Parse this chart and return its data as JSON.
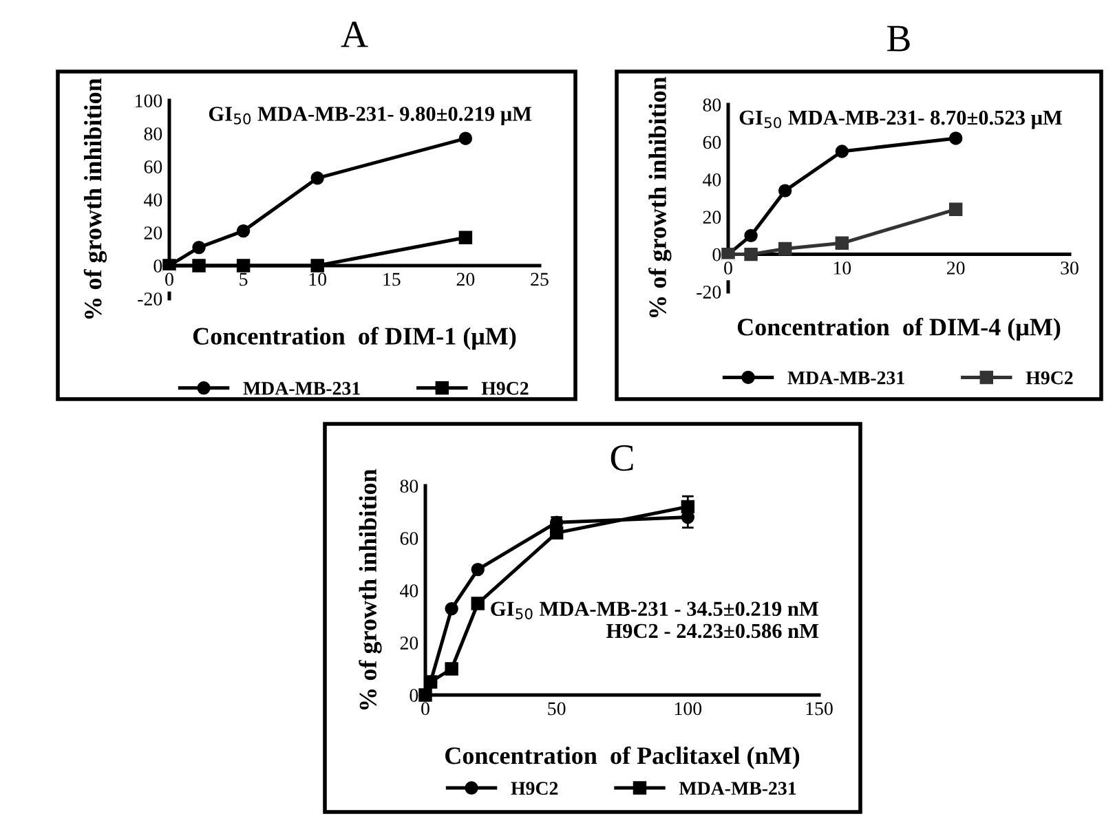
{
  "chart_data": [
    {
      "type": "line",
      "title": "A",
      "xlabel": "Concentration  of DIM-1 (μM)",
      "ylabel": "% of growth inhibition",
      "annotations": [
        "GI$_{50}$ MDA-MB-231- 9.80±0.219 μM"
      ],
      "xlim": [
        0,
        25
      ],
      "xticks": [
        0,
        5,
        10,
        15,
        20,
        25
      ],
      "ylim": [
        -20,
        100
      ],
      "yticks": [
        -20,
        0,
        20,
        40,
        60,
        80,
        100
      ],
      "grid": false,
      "legend": "bottom",
      "series": [
        {
          "name": "MDA-MB-231",
          "color": "#000000",
          "marker": "circle",
          "x": [
            0,
            2,
            5,
            10,
            20
          ],
          "values": [
            0,
            11,
            21,
            53,
            77
          ]
        },
        {
          "name": "H9C2",
          "color": "#000000",
          "marker": "square",
          "x": [
            0,
            2,
            5,
            10,
            20
          ],
          "values": [
            0,
            0,
            0,
            0,
            17
          ]
        }
      ]
    },
    {
      "type": "line",
      "title": "B",
      "xlabel": "Concentration  of DIM-4 (μM)",
      "ylabel": "% of growth inhibition",
      "annotations": [
        "GI$_{50}$ MDA-MB-231- 8.70±0.523 μM"
      ],
      "xlim": [
        0,
        30
      ],
      "xticks": [
        0,
        10,
        20,
        30
      ],
      "ylim": [
        -20,
        80
      ],
      "yticks": [
        -20,
        0,
        20,
        40,
        60,
        80
      ],
      "grid": false,
      "legend": "bottom",
      "series": [
        {
          "name": "MDA-MB-231",
          "color": "#000000",
          "marker": "circle",
          "x": [
            0,
            2,
            5,
            10,
            20
          ],
          "values": [
            0,
            10,
            34,
            55,
            62
          ]
        },
        {
          "name": "H9C2",
          "color": "#333333",
          "marker": "square",
          "x": [
            0,
            2,
            5,
            10,
            20
          ],
          "values": [
            0,
            0,
            3,
            6,
            24
          ]
        }
      ]
    },
    {
      "type": "line",
      "title": "C",
      "xlabel": "Concentration  of Paclitaxel (nM)",
      "ylabel": "% of growth inhibition",
      "annotations": [
        "GI$_{50}$ MDA-MB-231 - 34.5±0.219 nM\nH9C2 - 24.23±0.586 nM"
      ],
      "xlim": [
        0,
        150
      ],
      "xticks": [
        0,
        50,
        100,
        150
      ],
      "ylim": [
        0,
        80
      ],
      "yticks": [
        0,
        20,
        40,
        60,
        80
      ],
      "grid": false,
      "legend": "bottom",
      "series": [
        {
          "name": "H9C2",
          "color": "#000000",
          "marker": "circle",
          "x": [
            0,
            2,
            10,
            20,
            50,
            100
          ],
          "values": [
            0,
            5,
            33,
            48,
            66,
            68
          ],
          "errors": [
            null,
            null,
            null,
            null,
            2,
            4
          ]
        },
        {
          "name": "MDA-MB-231",
          "color": "#000000",
          "marker": "square",
          "x": [
            0,
            2,
            10,
            20,
            50,
            100
          ],
          "values": [
            0,
            5,
            10,
            35,
            62,
            72
          ],
          "errors": [
            null,
            null,
            null,
            null,
            2,
            4
          ]
        }
      ]
    }
  ]
}
